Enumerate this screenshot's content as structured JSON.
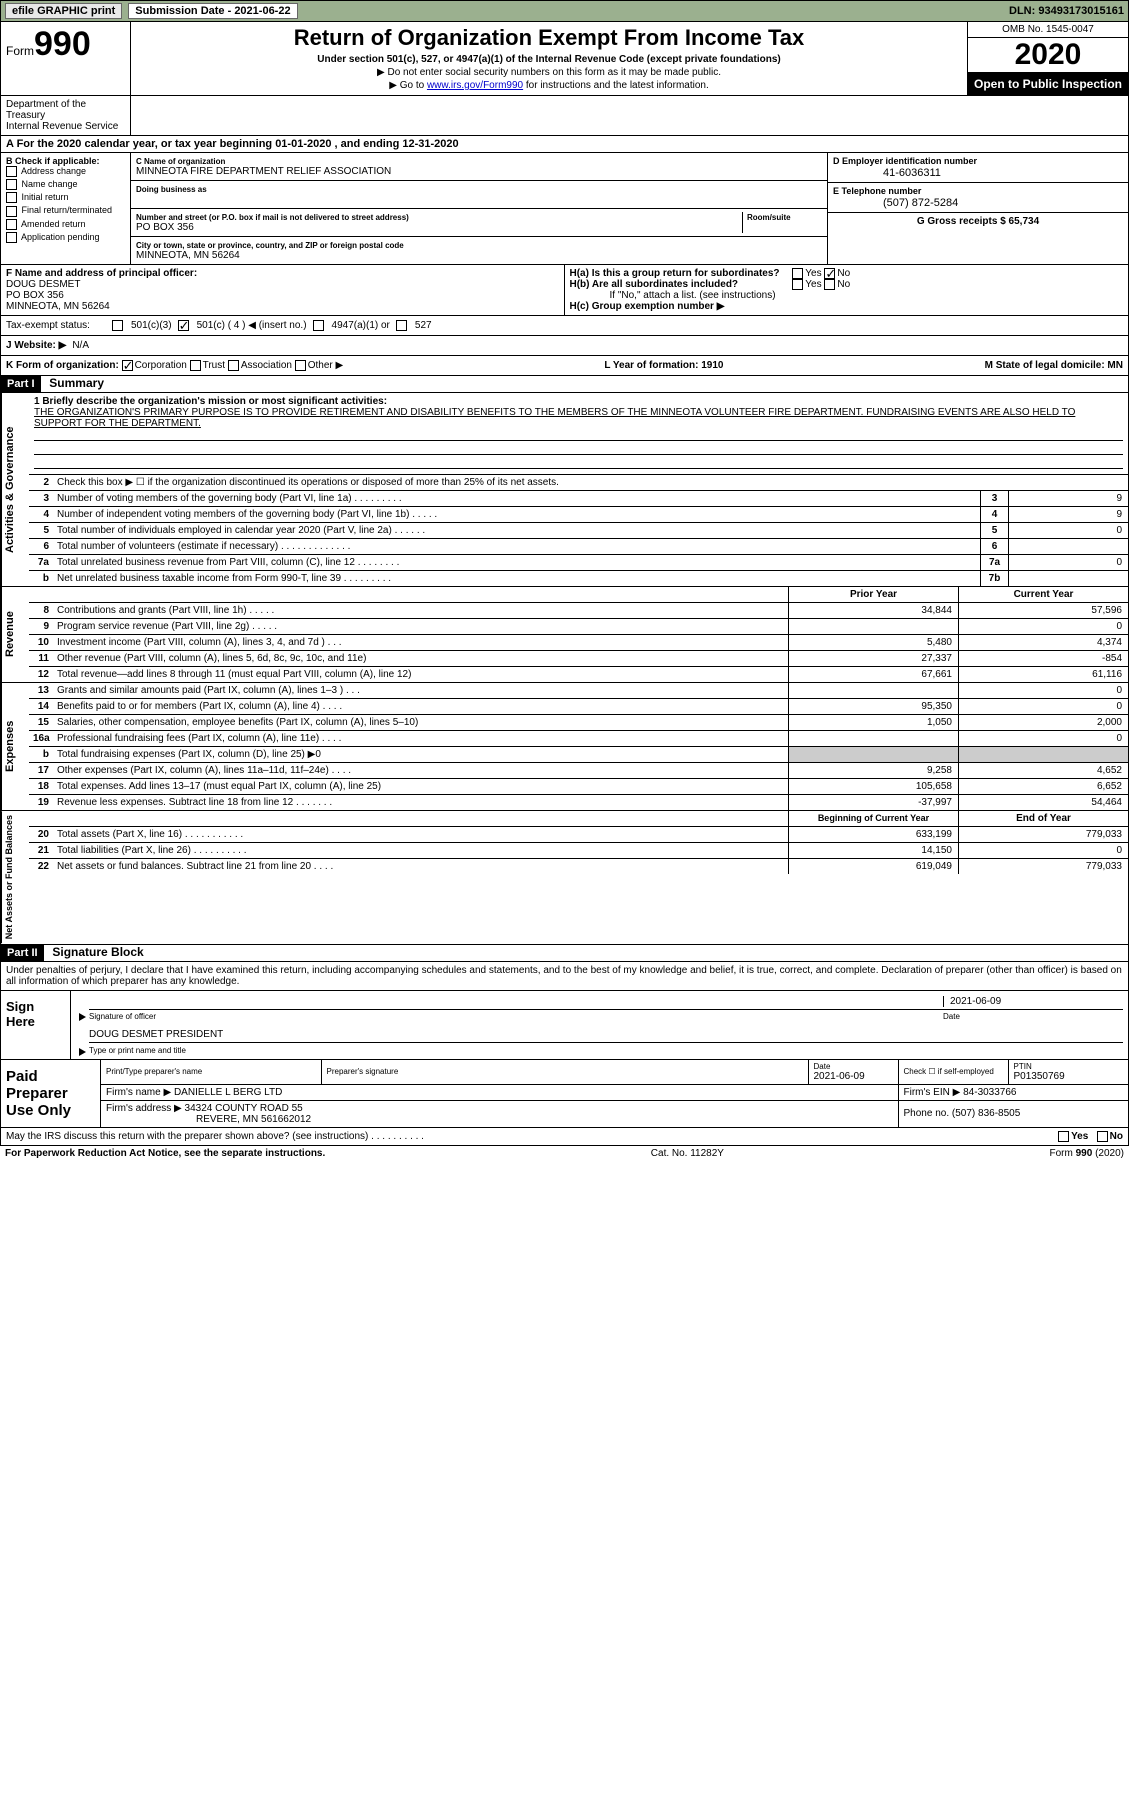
{
  "topbar": {
    "efile": "efile GRAPHIC print",
    "submission_label": "Submission Date - 2021-06-22",
    "dln": "DLN: 93493173015161"
  },
  "header": {
    "form_label": "Form",
    "form_number": "990",
    "dept": "Department of the Treasury\nInternal Revenue Service",
    "title": "Return of Organization Exempt From Income Tax",
    "subtitle": "Under section 501(c), 527, or 4947(a)(1) of the Internal Revenue Code (except private foundations)",
    "note1": "▶ Do not enter social security numbers on this form as it may be made public.",
    "note2_pre": "▶ Go to ",
    "note2_link": "www.irs.gov/Form990",
    "note2_post": " for instructions and the latest information.",
    "omb": "OMB No. 1545-0047",
    "year": "2020",
    "open": "Open to Public Inspection"
  },
  "row_a": "A For the 2020 calendar year, or tax year beginning 01-01-2020   , and ending 12-31-2020",
  "section_b": {
    "header": "B Check if applicable:",
    "items": [
      "Address change",
      "Name change",
      "Initial return",
      "Final return/terminated",
      "Amended return",
      "Application pending"
    ]
  },
  "section_c": {
    "name_lbl": "C Name of organization",
    "name": "MINNEOTA FIRE DEPARTMENT RELIEF ASSOCIATION",
    "dba_lbl": "Doing business as",
    "dba": "",
    "addr_lbl": "Number and street (or P.O. box if mail is not delivered to street address)",
    "room_lbl": "Room/suite",
    "addr": "PO BOX 356",
    "city_lbl": "City or town, state or province, country, and ZIP or foreign postal code",
    "city": "MINNEOTA, MN  56264"
  },
  "section_de": {
    "d_lbl": "D Employer identification number",
    "d_val": "41-6036311",
    "e_lbl": "E Telephone number",
    "e_val": "(507) 872-5284",
    "g_lbl": "G Gross receipts $ 65,734"
  },
  "section_f": {
    "lbl": "F Name and address of principal officer:",
    "name": "DOUG DESMET",
    "addr1": "PO BOX 356",
    "addr2": "MINNEOTA, MN  56264"
  },
  "section_h": {
    "ha": "H(a)  Is this a group return for subordinates?",
    "ha_yes": "Yes",
    "ha_no": "No",
    "hb": "H(b)  Are all subordinates included?",
    "hb_yes": "Yes",
    "hb_no": "No",
    "hb_note": "If \"No,\" attach a list. (see instructions)",
    "hc": "H(c)  Group exemption number ▶"
  },
  "tax_status": {
    "lbl": "Tax-exempt status:",
    "opts": [
      "501(c)(3)",
      "501(c) ( 4 ) ◀ (insert no.)",
      "4947(a)(1) or",
      "527"
    ]
  },
  "website": {
    "lbl": "J  Website: ▶",
    "val": "N/A"
  },
  "k_row": {
    "lbl": "K Form of organization:",
    "opts": [
      "Corporation",
      "Trust",
      "Association",
      "Other ▶"
    ],
    "l": "L Year of formation: 1910",
    "m": "M State of legal domicile: MN"
  },
  "part1": {
    "header": "Part I",
    "title": "Summary",
    "mission_lbl": "1  Briefly describe the organization's mission or most significant activities:",
    "mission": "THE ORGANIZATION'S PRIMARY PURPOSE IS TO PROVIDE RETIREMENT AND DISABILITY BENEFITS TO THE MEMBERS OF THE MINNEOTA VOLUNTEER FIRE DEPARTMENT. FUNDRAISING EVENTS ARE ALSO HELD TO SUPPORT FOR THE DEPARTMENT.",
    "gov_lines": [
      {
        "n": "2",
        "d": "Check this box ▶ ☐ if the organization discontinued its operations or disposed of more than 25% of its net assets.",
        "box": "",
        "v": ""
      },
      {
        "n": "3",
        "d": "Number of voting members of the governing body (Part VI, line 1a)  .   .   .   .   .   .   .   .   .",
        "box": "3",
        "v": "9"
      },
      {
        "n": "4",
        "d": "Number of independent voting members of the governing body (Part VI, line 1b)  .   .   .   .   .",
        "box": "4",
        "v": "9"
      },
      {
        "n": "5",
        "d": "Total number of individuals employed in calendar year 2020 (Part V, line 2a)  .   .   .   .   .   .",
        "box": "5",
        "v": "0"
      },
      {
        "n": "6",
        "d": "Total number of volunteers (estimate if necessary)   .   .   .   .   .   .   .   .   .   .   .   .   .",
        "box": "6",
        "v": ""
      },
      {
        "n": "7a",
        "d": "Total unrelated business revenue from Part VIII, column (C), line 12  .   .   .   .   .   .   .   .",
        "box": "7a",
        "v": "0"
      },
      {
        "n": "b",
        "d": "Net unrelated business taxable income from Form 990-T, line 39   .   .   .   .   .   .   .   .   .",
        "box": "7b",
        "v": ""
      }
    ],
    "py_header": "Prior Year",
    "cy_header": "Current Year",
    "rev_lines": [
      {
        "n": "8",
        "d": "Contributions and grants (Part VIII, line 1h)  .   .   .   .   .",
        "py": "34,844",
        "cy": "57,596"
      },
      {
        "n": "9",
        "d": "Program service revenue (Part VIII, line 2g)  .   .   .   .   .",
        "py": "",
        "cy": "0"
      },
      {
        "n": "10",
        "d": "Investment income (Part VIII, column (A), lines 3, 4, and 7d )    .    .    .",
        "py": "5,480",
        "cy": "4,374"
      },
      {
        "n": "11",
        "d": "Other revenue (Part VIII, column (A), lines 5, 6d, 8c, 9c, 10c, and 11e)",
        "py": "27,337",
        "cy": "-854"
      },
      {
        "n": "12",
        "d": "Total revenue—add lines 8 through 11 (must equal Part VIII, column (A), line 12)",
        "py": "67,661",
        "cy": "61,116"
      }
    ],
    "exp_lines": [
      {
        "n": "13",
        "d": "Grants and similar amounts paid (Part IX, column (A), lines 1–3 )   .   .   .",
        "py": "",
        "cy": "0"
      },
      {
        "n": "14",
        "d": "Benefits paid to or for members (Part IX, column (A), line 4)  .   .   .   .",
        "py": "95,350",
        "cy": "0"
      },
      {
        "n": "15",
        "d": "Salaries, other compensation, employee benefits (Part IX, column (A), lines 5–10)",
        "py": "1,050",
        "cy": "2,000"
      },
      {
        "n": "16a",
        "d": "Professional fundraising fees (Part IX, column (A), line 11e)  .   .   .   .",
        "py": "",
        "cy": "0"
      },
      {
        "n": "b",
        "d": "Total fundraising expenses (Part IX, column (D), line 25) ▶0",
        "py": "shaded",
        "cy": "shaded"
      },
      {
        "n": "17",
        "d": "Other expenses (Part IX, column (A), lines 11a–11d, 11f–24e)  .   .   .   .",
        "py": "9,258",
        "cy": "4,652"
      },
      {
        "n": "18",
        "d": "Total expenses. Add lines 13–17 (must equal Part IX, column (A), line 25)",
        "py": "105,658",
        "cy": "6,652"
      },
      {
        "n": "19",
        "d": "Revenue less expenses. Subtract line 18 from line 12  .   .   .   .   .   .   .",
        "py": "-37,997",
        "cy": "54,464"
      }
    ],
    "na_py_header": "Beginning of Current Year",
    "na_cy_header": "End of Year",
    "na_lines": [
      {
        "n": "20",
        "d": "Total assets (Part X, line 16)  .   .   .   .   .   .   .   .   .   .   .",
        "py": "633,199",
        "cy": "779,033"
      },
      {
        "n": "21",
        "d": "Total liabilities (Part X, line 26)   .   .   .   .   .   .   .   .   .   .",
        "py": "14,150",
        "cy": "0"
      },
      {
        "n": "22",
        "d": "Net assets or fund balances. Subtract line 21 from line 20   .   .   .   .",
        "py": "619,049",
        "cy": "779,033"
      }
    ]
  },
  "part2": {
    "header": "Part II",
    "title": "Signature Block",
    "declaration": "Under penalties of perjury, I declare that I have examined this return, including accompanying schedules and statements, and to the best of my knowledge and belief, it is true, correct, and complete. Declaration of preparer (other than officer) is based on all information of which preparer has any knowledge.",
    "sign_here": "Sign Here",
    "sig_officer": "Signature of officer",
    "sig_date": "2021-06-09",
    "date_lbl": "Date",
    "sig_name": "DOUG DESMET PRESIDENT",
    "sig_name_lbl": "Type or print name and title",
    "paid_lbl": "Paid Preparer Use Only",
    "prep_name_lbl": "Print/Type preparer's name",
    "prep_sig_lbl": "Preparer's signature",
    "prep_date_lbl": "Date",
    "prep_date": "2021-06-09",
    "prep_check_lbl": "Check ☐ if self-employed",
    "ptin_lbl": "PTIN",
    "ptin": "P01350769",
    "firm_name_lbl": "Firm's name    ▶",
    "firm_name": "DANIELLE L BERG LTD",
    "firm_ein_lbl": "Firm's EIN ▶",
    "firm_ein": "84-3033766",
    "firm_addr_lbl": "Firm's address ▶",
    "firm_addr1": "34324 COUNTY ROAD 55",
    "firm_addr2": "REVERE, MN  561662012",
    "firm_phone_lbl": "Phone no.",
    "firm_phone": "(507) 836-8505",
    "discuss": "May the IRS discuss this return with the preparer shown above? (see instructions)   .   .   .   .   .   .   .   .   .   .",
    "discuss_yes": "Yes",
    "discuss_no": "No"
  },
  "footer": {
    "left": "For Paperwork Reduction Act Notice, see the separate instructions.",
    "mid": "Cat. No. 11282Y",
    "right": "Form 990 (2020)"
  },
  "vtabs": {
    "gov": "Activities & Governance",
    "rev": "Revenue",
    "exp": "Expenses",
    "na": "Net Assets or Fund Balances"
  }
}
